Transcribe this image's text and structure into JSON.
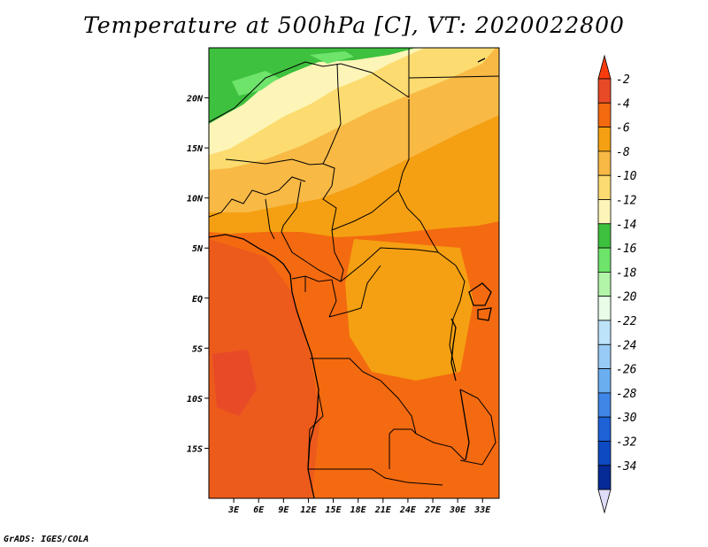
{
  "title": "Temperature at 500hPa [C], VT: 2020022800",
  "credit": "GrADS: IGES/COLA",
  "map": {
    "lon_range": [
      0,
      35
    ],
    "lat_range": [
      -20,
      25
    ],
    "lat_ticks": [
      {
        "value": 20,
        "label": "20N"
      },
      {
        "value": 15,
        "label": "15N"
      },
      {
        "value": 10,
        "label": "10N"
      },
      {
        "value": 5,
        "label": "5N"
      },
      {
        "value": 0,
        "label": "EQ"
      },
      {
        "value": -5,
        "label": "5S"
      },
      {
        "value": -10,
        "label": "10S"
      },
      {
        "value": -15,
        "label": "15S"
      }
    ],
    "lon_ticks": [
      {
        "value": 3,
        "label": "3E"
      },
      {
        "value": 6,
        "label": "6E"
      },
      {
        "value": 9,
        "label": "9E"
      },
      {
        "value": 12,
        "label": "12E"
      },
      {
        "value": 15,
        "label": "15E"
      },
      {
        "value": 18,
        "label": "18E"
      },
      {
        "value": 21,
        "label": "21E"
      },
      {
        "value": 24,
        "label": "24E"
      },
      {
        "value": 27,
        "label": "27E"
      },
      {
        "value": 30,
        "label": "30E"
      },
      {
        "value": 33,
        "label": "33E"
      }
    ]
  },
  "colorbar": {
    "levels": [
      {
        "label": "-2",
        "color": "#e84a28"
      },
      {
        "label": "-4",
        "color": "#f46a10"
      },
      {
        "label": "-6",
        "color": "#f5a012"
      },
      {
        "label": "-8",
        "color": "#f8b945"
      },
      {
        "label": "-10",
        "color": "#fcdc70"
      },
      {
        "label": "-12",
        "color": "#fdf5b8"
      },
      {
        "label": "-14",
        "color": "#3ec13e"
      },
      {
        "label": "-16",
        "color": "#6ee46a"
      },
      {
        "label": "-18",
        "color": "#b2f4a8"
      },
      {
        "label": "-20",
        "color": "#e8fce8"
      },
      {
        "label": "-22",
        "color": "#bde3fa"
      },
      {
        "label": "-24",
        "color": "#98cbf5"
      },
      {
        "label": "-26",
        "color": "#6aaef0"
      },
      {
        "label": "-28",
        "color": "#3f86e6"
      },
      {
        "label": "-30",
        "color": "#1e62d6"
      },
      {
        "label": "-32",
        "color": "#0e4bc2"
      },
      {
        "label": "-34",
        "color": "#062a96"
      }
    ],
    "over_color": "#fa3c0c",
    "under_color": "#dedcf7"
  }
}
